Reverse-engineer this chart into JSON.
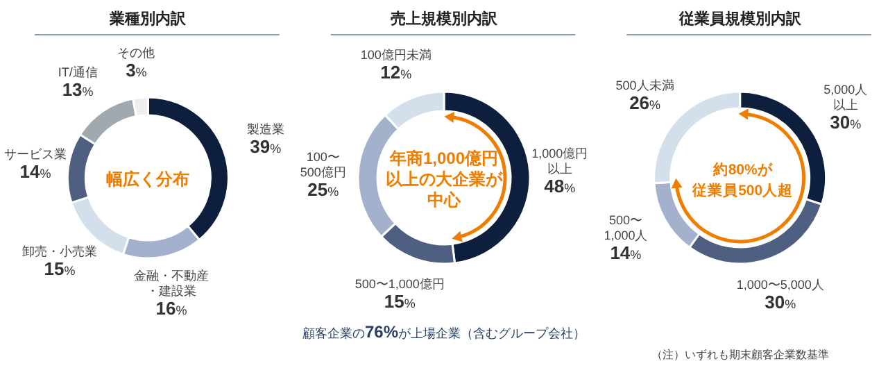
{
  "chart_data": [
    {
      "type": "donut",
      "title": "業種別内訳",
      "categories": [
        "製造業",
        "金融・不動産・建設業",
        "卸売・小売業",
        "サービス業",
        "IT/通信",
        "その他"
      ],
      "values": [
        39,
        16,
        15,
        14,
        13,
        3
      ],
      "value_labels": [
        "39%",
        "16%",
        "15%",
        "14%",
        "13%",
        "3%"
      ],
      "colors": [
        "#0d1f3c",
        "#a3b1cc",
        "#d3dfeb",
        "#4f5f82",
        "#a0a8b0",
        "#eeeeee"
      ],
      "annotations": [
        "幅広く分布"
      ],
      "legend": false
    },
    {
      "type": "donut",
      "title": "売上規模別内訳",
      "categories": [
        "1,000億円以上",
        "500〜1,000億円",
        "100〜500億円",
        "100億円未満"
      ],
      "values": [
        48,
        15,
        25,
        12
      ],
      "value_labels": [
        "48%",
        "15%",
        "25%",
        "12%"
      ],
      "colors": [
        "#0d1f3c",
        "#4f5f82",
        "#a3b1cc",
        "#d3dfeb"
      ],
      "annotations": [
        "年商1,000億円以上の大企業が中心",
        "顧客企業の**76%**が上場企業（含むグループ会社）"
      ],
      "legend": false
    },
    {
      "type": "donut",
      "title": "従業員規模別内訳",
      "categories": [
        "5,000人以上",
        "1,000〜5,000人",
        "500〜1,000人",
        "500人未満"
      ],
      "values": [
        30,
        30,
        14,
        26
      ],
      "value_labels": [
        "30%",
        "30%",
        "14%",
        "26%"
      ],
      "colors": [
        "#0d1f3c",
        "#4f5f82",
        "#a3b1cc",
        "#d3dfeb"
      ],
      "annotations": [
        "約80%が従業員500人超",
        "（注）いずれも期末顧客企業数基準"
      ],
      "legend": false
    }
  ]
}
